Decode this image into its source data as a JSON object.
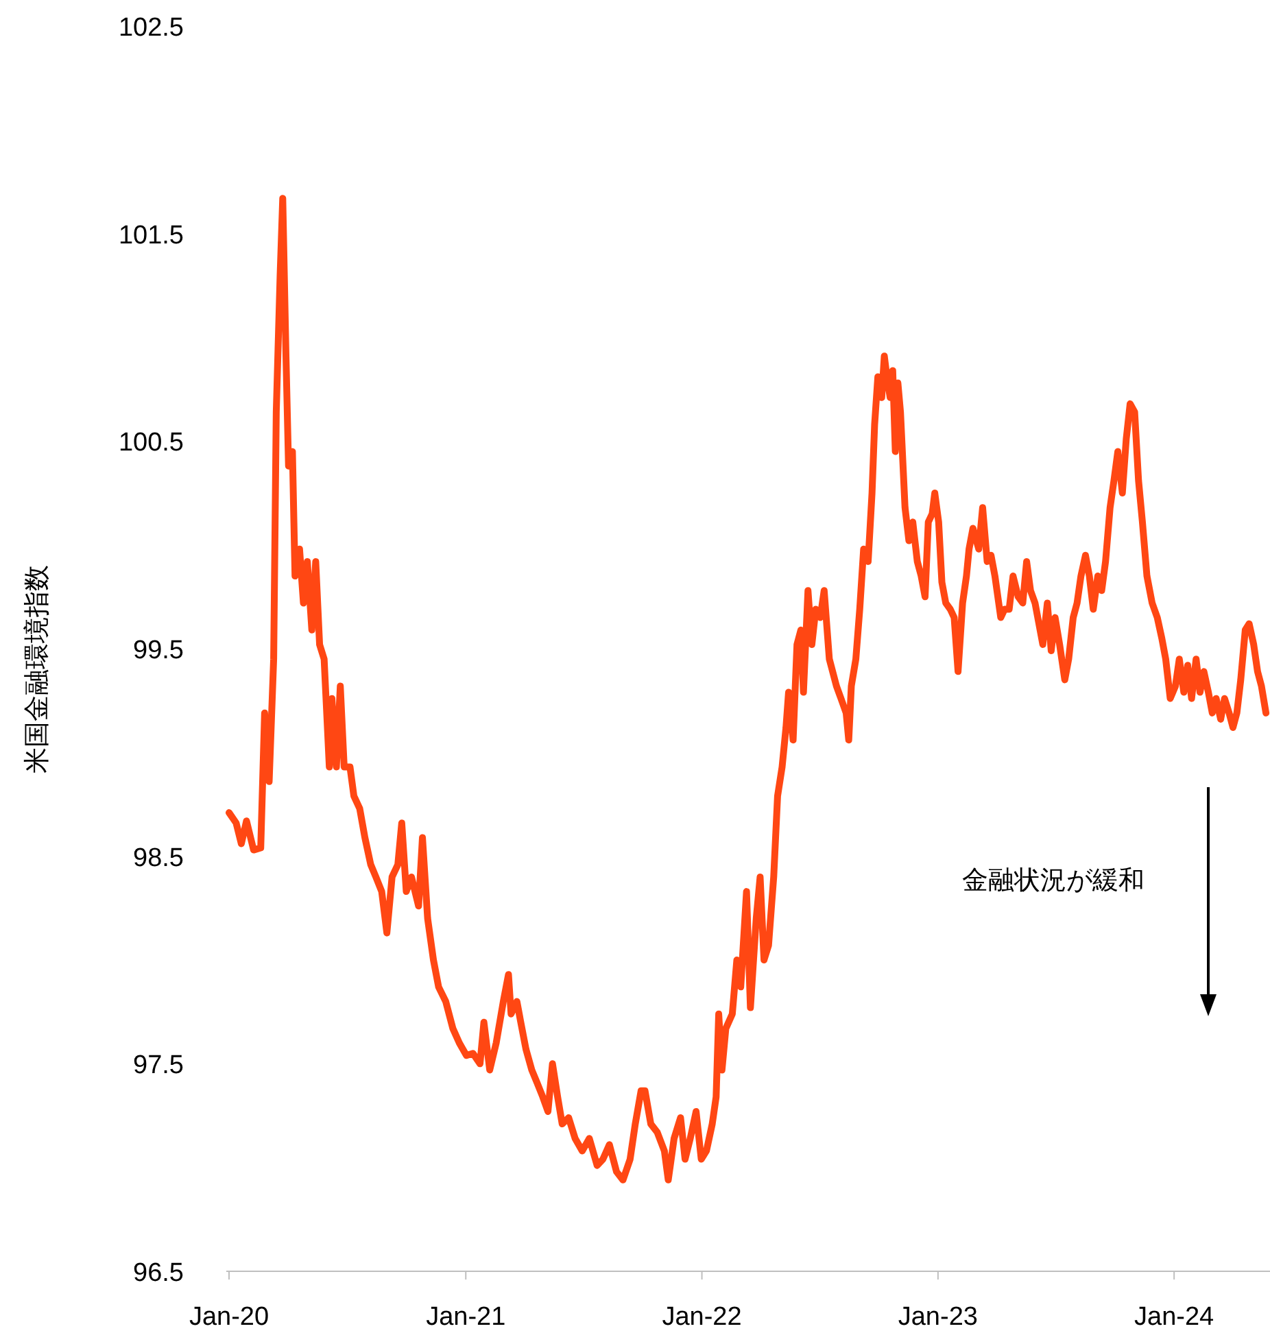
{
  "chart_data": {
    "type": "line",
    "ylabel": "米国金融環境指数",
    "annotations": [
      "金融状況が緩和"
    ],
    "xlim": [
      "2020-01-01",
      "2024-05-24"
    ],
    "xticks": [
      {
        "value": "2020-01-01",
        "label": "Jan-20"
      },
      {
        "value": "2021-01-01",
        "label": "Jan-21"
      },
      {
        "value": "2022-01-01",
        "label": "Jan-22"
      },
      {
        "value": "2023-01-01",
        "label": "Jan-23"
      },
      {
        "value": "2024-01-01",
        "label": "Jan-24"
      }
    ],
    "ylim": [
      96.5,
      102.5
    ],
    "yticks": [
      96.5,
      97.5,
      98.5,
      99.5,
      100.5,
      101.5,
      102.5
    ],
    "x": [
      "2020-01-01",
      "2020-01-12",
      "2020-01-20",
      "2020-01-28",
      "2020-02-08",
      "2020-02-19",
      "2020-02-25",
      "2020-03-03",
      "2020-03-10",
      "2020-03-14",
      "2020-03-20",
      "2020-03-24",
      "2020-03-29",
      "2020-04-02",
      "2020-04-08",
      "2020-04-12",
      "2020-04-19",
      "2020-04-25",
      "2020-05-01",
      "2020-05-08",
      "2020-05-14",
      "2020-05-20",
      "2020-05-27",
      "2020-06-04",
      "2020-06-08",
      "2020-06-15",
      "2020-06-21",
      "2020-06-27",
      "2020-07-06",
      "2020-07-12",
      "2020-07-21",
      "2020-07-29",
      "2020-08-07",
      "2020-08-15",
      "2020-08-24",
      "2020-09-01",
      "2020-09-09",
      "2020-09-18",
      "2020-09-24",
      "2020-10-01",
      "2020-10-09",
      "2020-10-20",
      "2020-10-26",
      "2020-11-03",
      "2020-11-12",
      "2020-11-20",
      "2020-12-01",
      "2020-12-12",
      "2020-12-22",
      "2021-01-02",
      "2021-01-12",
      "2021-01-23",
      "2021-01-29",
      "2021-02-07",
      "2021-02-17",
      "2021-02-28",
      "2021-03-08",
      "2021-03-12",
      "2021-03-21",
      "2021-03-27",
      "2021-04-04",
      "2021-04-13",
      "2021-04-21",
      "2021-04-30",
      "2021-05-08",
      "2021-05-15",
      "2021-05-23",
      "2021-05-30",
      "2021-06-09",
      "2021-06-19",
      "2021-06-30",
      "2021-07-11",
      "2021-07-23",
      "2021-08-01",
      "2021-08-11",
      "2021-08-22",
      "2021-09-01",
      "2021-09-12",
      "2021-09-20",
      "2021-09-29",
      "2021-10-05",
      "2021-10-14",
      "2021-10-24",
      "2021-11-04",
      "2021-11-10",
      "2021-11-19",
      "2021-11-29",
      "2021-12-06",
      "2021-12-14",
      "2021-12-23",
      "2021-12-31",
      "2022-01-08",
      "2022-01-17",
      "2022-01-23",
      "2022-01-27",
      "2022-02-01",
      "2022-02-07",
      "2022-02-17",
      "2022-02-24",
      "2022-03-02",
      "2022-03-11",
      "2022-03-17",
      "2022-03-26",
      "2022-04-01",
      "2022-04-07",
      "2022-04-14",
      "2022-04-22",
      "2022-04-28",
      "2022-05-05",
      "2022-05-11",
      "2022-05-15",
      "2022-05-22",
      "2022-05-28",
      "2022-06-03",
      "2022-06-07",
      "2022-06-14",
      "2022-06-20",
      "2022-06-26",
      "2022-07-03",
      "2022-07-09",
      "2022-07-17",
      "2022-07-28",
      "2022-08-04",
      "2022-08-12",
      "2022-08-16",
      "2022-08-20",
      "2022-08-27",
      "2022-09-02",
      "2022-09-08",
      "2022-09-15",
      "2022-09-21",
      "2022-09-25",
      "2022-09-30",
      "2022-10-06",
      "2022-10-10",
      "2022-10-14",
      "2022-10-19",
      "2022-10-23",
      "2022-10-27",
      "2022-10-31",
      "2022-11-04",
      "2022-11-11",
      "2022-11-17",
      "2022-11-23",
      "2022-11-30",
      "2022-12-06",
      "2022-12-12",
      "2022-12-17",
      "2022-12-23",
      "2022-12-27",
      "2023-01-02",
      "2023-01-07",
      "2023-01-13",
      "2023-01-20",
      "2023-01-26",
      "2023-02-01",
      "2023-02-08",
      "2023-02-14",
      "2023-02-18",
      "2023-02-24",
      "2023-03-05",
      "2023-03-11",
      "2023-03-18",
      "2023-03-24",
      "2023-03-30",
      "2023-04-08",
      "2023-04-14",
      "2023-04-21",
      "2023-04-27",
      "2023-05-05",
      "2023-05-12",
      "2023-05-18",
      "2023-05-24",
      "2023-05-31",
      "2023-06-06",
      "2023-06-12",
      "2023-06-19",
      "2023-06-25",
      "2023-07-01",
      "2023-07-08",
      "2023-07-16",
      "2023-07-22",
      "2023-07-29",
      "2023-08-04",
      "2023-08-10",
      "2023-08-17",
      "2023-08-23",
      "2023-08-29",
      "2023-09-05",
      "2023-09-11",
      "2023-09-17",
      "2023-09-24",
      "2023-09-30",
      "2023-10-06",
      "2023-10-13",
      "2023-10-19",
      "2023-10-25",
      "2023-11-01",
      "2023-11-07",
      "2023-11-13",
      "2023-11-20",
      "2023-11-28",
      "2023-12-06",
      "2023-12-13",
      "2023-12-19",
      "2023-12-26",
      "2024-01-03",
      "2024-01-09",
      "2024-01-16",
      "2024-01-22",
      "2024-01-28",
      "2024-02-04",
      "2024-02-10",
      "2024-02-16",
      "2024-02-23",
      "2024-02-29",
      "2024-03-06",
      "2024-03-13",
      "2024-03-19",
      "2024-03-26",
      "2024-04-01",
      "2024-04-07",
      "2024-04-13",
      "2024-04-20",
      "2024-04-26",
      "2024-05-03",
      "2024-05-09",
      "2024-05-15",
      "2024-05-22"
    ],
    "series": [
      {
        "color": "#ff4713",
        "values": [
          98.71,
          98.66,
          98.56,
          98.67,
          98.53,
          98.54,
          99.19,
          98.86,
          99.45,
          100.64,
          101.3,
          101.67,
          100.91,
          100.38,
          100.45,
          99.85,
          99.98,
          99.72,
          99.92,
          99.59,
          99.92,
          99.52,
          99.45,
          98.93,
          99.26,
          98.93,
          99.32,
          98.93,
          98.93,
          98.79,
          98.73,
          98.59,
          98.46,
          98.4,
          98.33,
          98.13,
          98.4,
          98.46,
          98.66,
          98.33,
          98.4,
          98.26,
          98.59,
          98.2,
          98.0,
          97.87,
          97.8,
          97.67,
          97.6,
          97.54,
          97.55,
          97.5,
          97.7,
          97.47,
          97.6,
          97.8,
          97.93,
          97.74,
          97.8,
          97.7,
          97.57,
          97.47,
          97.41,
          97.34,
          97.27,
          97.5,
          97.34,
          97.21,
          97.24,
          97.14,
          97.08,
          97.14,
          97.01,
          97.04,
          97.11,
          96.98,
          96.94,
          97.04,
          97.21,
          97.37,
          97.37,
          97.21,
          97.17,
          97.08,
          96.94,
          97.14,
          97.24,
          97.04,
          97.14,
          97.27,
          97.04,
          97.08,
          97.21,
          97.34,
          97.74,
          97.47,
          97.67,
          97.74,
          98.0,
          97.87,
          98.33,
          97.77,
          98.2,
          98.4,
          98.0,
          98.07,
          98.4,
          98.79,
          98.93,
          99.12,
          99.29,
          99.06,
          99.52,
          99.59,
          99.29,
          99.78,
          99.52,
          99.69,
          99.65,
          99.78,
          99.45,
          99.32,
          99.26,
          99.19,
          99.06,
          99.32,
          99.45,
          99.69,
          99.98,
          99.92,
          100.25,
          100.58,
          100.81,
          100.71,
          100.91,
          100.81,
          100.71,
          100.84,
          100.45,
          100.78,
          100.64,
          100.18,
          100.02,
          100.11,
          99.92,
          99.85,
          99.75,
          100.11,
          100.15,
          100.25,
          100.11,
          99.82,
          99.72,
          99.69,
          99.65,
          99.39,
          99.72,
          99.85,
          99.98,
          100.08,
          99.98,
          100.18,
          99.92,
          99.95,
          99.85,
          99.65,
          99.69,
          99.69,
          99.85,
          99.75,
          99.72,
          99.92,
          99.78,
          99.72,
          99.62,
          99.52,
          99.72,
          99.49,
          99.65,
          99.52,
          99.35,
          99.45,
          99.65,
          99.72,
          99.85,
          99.95,
          99.85,
          99.69,
          99.85,
          99.78,
          99.92,
          100.18,
          100.31,
          100.45,
          100.25,
          100.51,
          100.68,
          100.64,
          100.31,
          100.11,
          99.85,
          99.72,
          99.65,
          99.55,
          99.45,
          99.26,
          99.32,
          99.45,
          99.29,
          99.42,
          99.26,
          99.45,
          99.29,
          99.39,
          99.29,
          99.19,
          99.26,
          99.16,
          99.26,
          99.19,
          99.12,
          99.19,
          99.35,
          99.59,
          99.62,
          99.52,
          99.39,
          99.32,
          99.19
        ]
      }
    ]
  }
}
